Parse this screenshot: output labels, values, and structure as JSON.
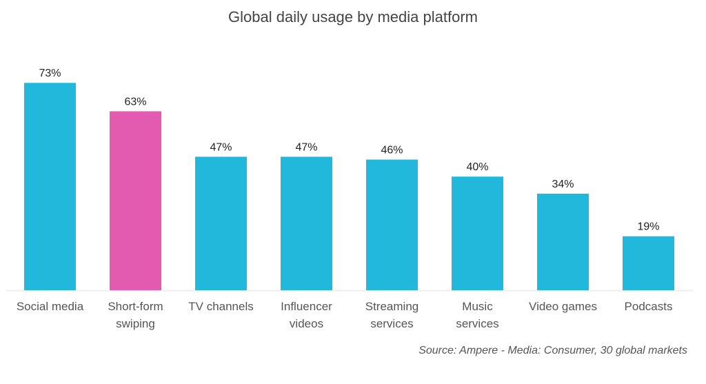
{
  "chart_data": {
    "type": "bar",
    "title": "Global daily usage by media platform",
    "categories": [
      [
        "Social media"
      ],
      [
        "Short-form",
        "swiping"
      ],
      [
        "TV channels"
      ],
      [
        "Influencer",
        "videos"
      ],
      [
        "Streaming",
        "services"
      ],
      [
        "Music",
        "services"
      ],
      [
        "Video games"
      ],
      [
        "Podcasts"
      ]
    ],
    "values": [
      73,
      63,
      47,
      47,
      46,
      40,
      34,
      19
    ],
    "data_labels": [
      "73%",
      "63%",
      "47%",
      "47%",
      "46%",
      "40%",
      "34%",
      "19%"
    ],
    "highlight_index": 1,
    "colors": {
      "default": "#22b8dc",
      "highlight": "#e35bb0",
      "baseline": "#eeeeee"
    },
    "ylim": [
      0,
      80
    ],
    "grid": false,
    "legend": "none",
    "source": "Source: Ampere - Media: Consumer, 30 global markets"
  }
}
